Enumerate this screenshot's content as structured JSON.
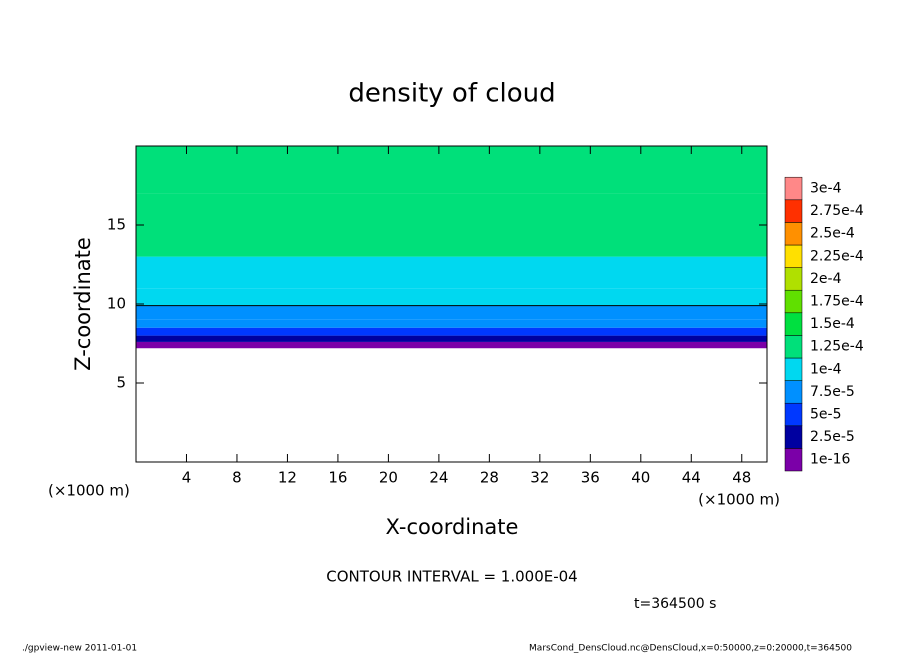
{
  "chart_data": {
    "type": "contour",
    "title": "density of cloud",
    "xlabel": "X-coordinate",
    "ylabel": "Z-coordinate",
    "x_unit": "(×1000 m)",
    "x_unit_right": "(×1000 m)",
    "contour_note": "CONTOUR INTERVAL = 1.000E-04",
    "time_note": "t=364500 s",
    "footer_left": "./gpview-new  2011-01-01",
    "footer_right": "MarsCond_DensCloud.nc@DensCloud,x=0:50000,z=0:20000,t=364500",
    "xlim": [
      0,
      50
    ],
    "xticks": [
      4,
      8,
      12,
      16,
      20,
      24,
      28,
      32,
      36,
      40,
      44,
      48
    ],
    "ylim": [
      0,
      20
    ],
    "yticks": [
      5,
      10,
      15
    ],
    "contour_level": 0.0001,
    "profile": {
      "z": [
        7.2,
        7.6,
        8.0,
        8.5,
        9.0,
        9.9,
        11,
        13,
        17
      ],
      "values": [
        2e-06,
        3e-05,
        5.5e-05,
        8e-05,
        9e-05,
        0.000105,
        0.00012,
        0.00013,
        0.00014
      ]
    },
    "levels": [
      {
        "value": 1e-16,
        "label": "1e-16"
      },
      {
        "value": 2.5e-05,
        "label": "2.5e-5"
      },
      {
        "value": 5e-05,
        "label": "5e-5"
      },
      {
        "value": 7.5e-05,
        "label": "7.5e-5"
      },
      {
        "value": 0.0001,
        "label": "1e-4"
      },
      {
        "value": 0.000125,
        "label": "1.25e-4"
      },
      {
        "value": 0.00015,
        "label": "1.5e-4"
      },
      {
        "value": 0.000175,
        "label": "1.75e-4"
      },
      {
        "value": 0.0002,
        "label": "2e-4"
      },
      {
        "value": 0.000225,
        "label": "2.25e-4"
      },
      {
        "value": 0.00025,
        "label": "2.5e-4"
      },
      {
        "value": 0.000275,
        "label": "2.75e-4"
      },
      {
        "value": 0.0003,
        "label": "3e-4"
      }
    ],
    "colors": [
      "#7b00a8",
      "#0000a0",
      "#0038ff",
      "#0090ff",
      "#00d8f0",
      "#00e07a",
      "#00e040",
      "#60e000",
      "#b0e000",
      "#ffe000",
      "#ff9000",
      "#ff3000",
      "#ff8888"
    ]
  }
}
